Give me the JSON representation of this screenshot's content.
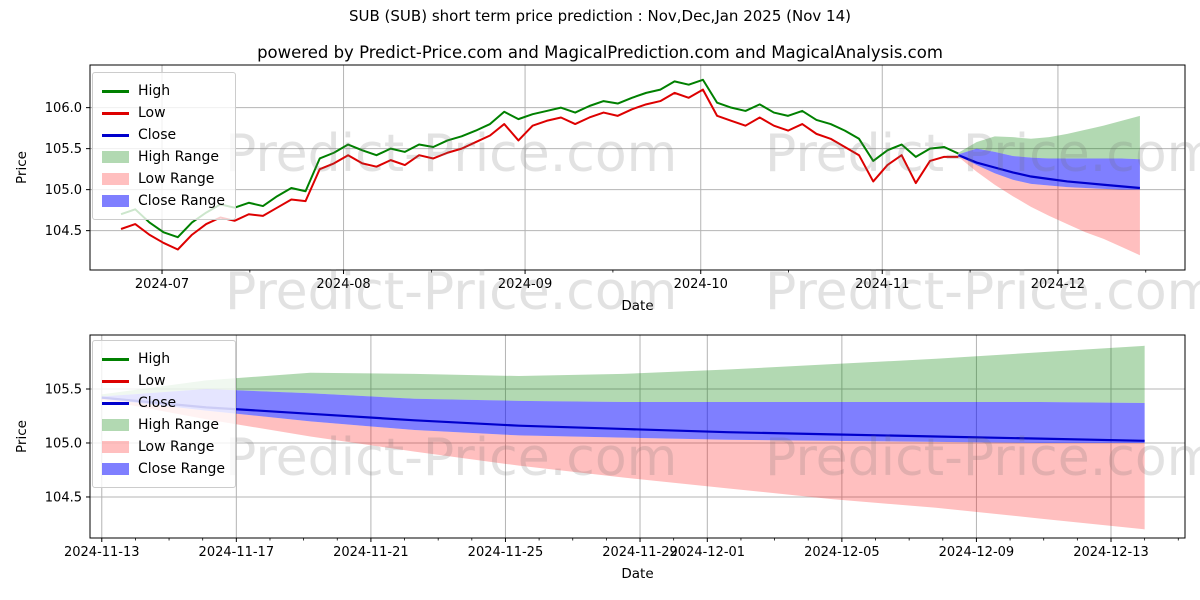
{
  "header": {
    "title": "SUB (SUB) short term price prediction : Nov,Dec,Jan 2025 (Nov 14)",
    "subtitle": "powered by Predict-Price.com and MagicalPrediction.com and MagicalAnalysis.com"
  },
  "watermark": {
    "text": "Predict-Price.com"
  },
  "colors": {
    "high_line": "#008000",
    "low_line": "#dd0000",
    "close_line": "#0000cc",
    "high_range_fill": "rgba(0,128,0,0.30)",
    "low_range_fill": "rgba(255,0,0,0.25)",
    "close_range_fill": "rgba(0,0,255,0.50)",
    "grid": "#b4b4b4",
    "spine": "#000000"
  },
  "legend": {
    "position": "upper left",
    "items": [
      {
        "label": "High",
        "type": "line",
        "color": "#008000"
      },
      {
        "label": "Low",
        "type": "line",
        "color": "#dd0000"
      },
      {
        "label": "Close",
        "type": "line",
        "color": "#0000cc"
      },
      {
        "label": "High Range",
        "type": "box",
        "color": "rgba(0,128,0,0.30)"
      },
      {
        "label": "Low Range",
        "type": "box",
        "color": "rgba(255,0,0,0.25)"
      },
      {
        "label": "Close Range",
        "type": "box",
        "color": "rgba(0,0,255,0.50)"
      }
    ]
  },
  "chart_data": [
    {
      "type": "line",
      "name": "history-and-forecast",
      "xlabel": "Date",
      "ylabel": "Price",
      "grid": true,
      "ylim": [
        104.02,
        106.52
      ],
      "yticks": [
        104.5,
        105.0,
        105.5,
        106.0
      ],
      "epoch": "2024-06-24",
      "xlim_days": [
        -5.3,
        181.7
      ],
      "xticks": [
        {
          "t": 7,
          "label": "2024-07"
        },
        {
          "t": 38,
          "label": "2024-08"
        },
        {
          "t": 69,
          "label": "2024-09"
        },
        {
          "t": 99,
          "label": "2024-10"
        },
        {
          "t": 130,
          "label": "2024-11"
        },
        {
          "t": 160,
          "label": "2024-12"
        }
      ],
      "xminor_days": [
        22,
        53,
        84,
        114,
        145,
        175
      ],
      "series": [
        {
          "name": "High",
          "t0": 0,
          "step": 2.4237,
          "values": [
            104.7,
            104.76,
            104.6,
            104.48,
            104.42,
            104.6,
            104.72,
            104.82,
            104.78,
            104.84,
            104.8,
            104.92,
            105.02,
            104.98,
            105.38,
            105.45,
            105.55,
            105.48,
            105.42,
            105.5,
            105.46,
            105.55,
            105.52,
            105.6,
            105.65,
            105.72,
            105.8,
            105.95,
            105.86,
            105.92,
            105.96,
            106.0,
            105.94,
            106.02,
            106.08,
            106.05,
            106.12,
            106.18,
            106.22,
            106.32,
            106.28,
            106.34,
            106.06,
            106.0,
            105.96,
            106.04,
            105.94,
            105.9,
            105.96,
            105.85,
            105.8,
            105.72,
            105.62,
            105.35,
            105.48,
            105.55,
            105.4,
            105.5,
            105.52,
            105.44
          ]
        },
        {
          "name": "Low",
          "t0": 0,
          "step": 2.4237,
          "values": [
            104.52,
            104.58,
            104.45,
            104.35,
            104.27,
            104.45,
            104.58,
            104.66,
            104.62,
            104.7,
            104.68,
            104.78,
            104.88,
            104.86,
            105.25,
            105.32,
            105.42,
            105.32,
            105.28,
            105.36,
            105.3,
            105.42,
            105.38,
            105.45,
            105.5,
            105.58,
            105.66,
            105.8,
            105.6,
            105.78,
            105.84,
            105.88,
            105.8,
            105.88,
            105.94,
            105.9,
            105.98,
            106.04,
            106.08,
            106.18,
            106.12,
            106.22,
            105.9,
            105.84,
            105.78,
            105.88,
            105.78,
            105.72,
            105.8,
            105.68,
            105.62,
            105.52,
            105.42,
            105.1,
            105.3,
            105.42,
            105.08,
            105.35,
            105.4,
            105.4
          ]
        }
      ],
      "forecast": {
        "start_date": "2024-11-14",
        "t_start": 143,
        "days": [
          0,
          3.1,
          6.2,
          9.3,
          12.4,
          15.5,
          18.6,
          21.7,
          24.8,
          27.9,
          31
        ],
        "close": [
          105.42,
          105.33,
          105.27,
          105.21,
          105.16,
          105.13,
          105.1,
          105.08,
          105.06,
          105.04,
          105.02
        ],
        "close_top": [
          105.43,
          105.5,
          105.46,
          105.41,
          105.39,
          105.38,
          105.38,
          105.38,
          105.38,
          105.38,
          105.37
        ],
        "close_bot": [
          105.41,
          105.3,
          105.2,
          105.12,
          105.07,
          105.05,
          105.03,
          105.02,
          105.01,
          105.0,
          105.0
        ],
        "high_top": [
          105.45,
          105.58,
          105.65,
          105.64,
          105.62,
          105.64,
          105.68,
          105.73,
          105.78,
          105.84,
          105.9
        ],
        "low_bot": [
          105.4,
          105.22,
          105.06,
          104.92,
          104.79,
          104.68,
          104.58,
          104.48,
          104.4,
          104.3,
          104.2
        ]
      }
    },
    {
      "type": "line",
      "name": "forecast-detail",
      "xlabel": "Date",
      "ylabel": "Price",
      "grid": true,
      "ylim": [
        104.12,
        106.0
      ],
      "yticks": [
        104.5,
        105.0,
        105.5
      ],
      "epoch": "2024-11-13",
      "xlim_days": [
        -0.35,
        32.2
      ],
      "xticks": [
        {
          "t": 0,
          "label": "2024-11-13"
        },
        {
          "t": 4,
          "label": "2024-11-17"
        },
        {
          "t": 8,
          "label": "2024-11-21"
        },
        {
          "t": 12,
          "label": "2024-11-25"
        },
        {
          "t": 16,
          "label": "2024-11-29"
        },
        {
          "t": 18,
          "label": "2024-12-01"
        },
        {
          "t": 22,
          "label": "2024-12-05"
        },
        {
          "t": 26,
          "label": "2024-12-09"
        },
        {
          "t": 30,
          "label": "2024-12-13"
        }
      ],
      "xminor_days": [
        1,
        2,
        3,
        5,
        6,
        7,
        9,
        10,
        11,
        13,
        14,
        15,
        17,
        19,
        20,
        21,
        23,
        24,
        25,
        27,
        28,
        29,
        31,
        32
      ],
      "series": [],
      "forecast": {
        "start_date": "2024-11-13",
        "t_start": 0,
        "days": [
          0,
          3.1,
          6.2,
          9.3,
          12.4,
          15.5,
          18.6,
          21.7,
          24.8,
          27.9,
          31
        ],
        "close": [
          105.42,
          105.33,
          105.27,
          105.21,
          105.16,
          105.13,
          105.1,
          105.08,
          105.06,
          105.04,
          105.02
        ],
        "close_top": [
          105.43,
          105.5,
          105.46,
          105.41,
          105.39,
          105.38,
          105.38,
          105.38,
          105.38,
          105.38,
          105.37
        ],
        "close_bot": [
          105.41,
          105.3,
          105.2,
          105.12,
          105.07,
          105.05,
          105.03,
          105.02,
          105.01,
          105.0,
          105.0
        ],
        "high_top": [
          105.45,
          105.58,
          105.65,
          105.64,
          105.62,
          105.64,
          105.68,
          105.73,
          105.78,
          105.84,
          105.9
        ],
        "low_bot": [
          105.4,
          105.22,
          105.06,
          104.92,
          104.79,
          104.68,
          104.58,
          104.48,
          104.4,
          104.3,
          104.2
        ]
      }
    }
  ]
}
